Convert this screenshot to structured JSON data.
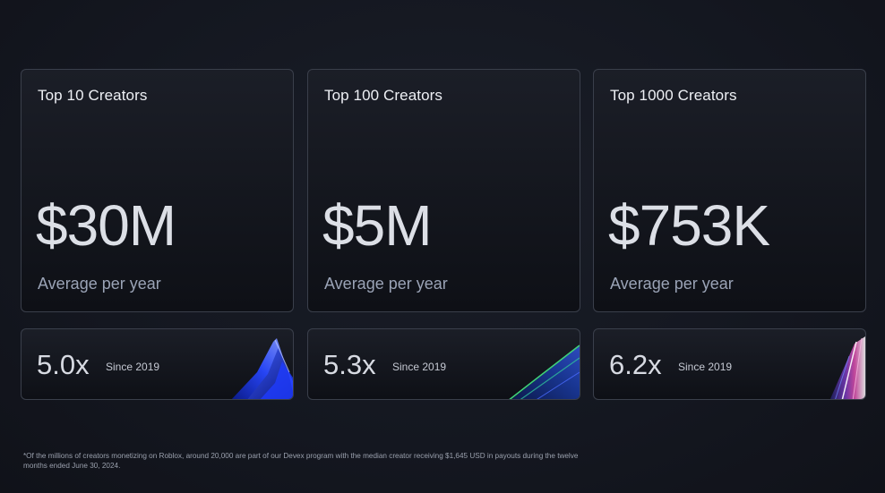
{
  "cards": [
    {
      "title": "Top 10 Creators",
      "value": "$30M",
      "subtitle": "Average per year",
      "multiplier": "5.0x",
      "since": "Since 2019"
    },
    {
      "title": "Top 100 Creators",
      "value": "$5M",
      "subtitle": "Average per year",
      "multiplier": "5.3x",
      "since": "Since 2019"
    },
    {
      "title": "Top 1000 Creators",
      "value": "$753K",
      "subtitle": "Average per year",
      "multiplier": "6.2x",
      "since": "Since 2019"
    }
  ],
  "footnote": "*Of the millions of creators monetizing on Roblox, around 20,000 are part of our Devex program with the median creator receiving $1,645 USD in payouts during the twelve months ended June 30, 2024.",
  "colors": {
    "background": "#151821",
    "card_border": "#3a3f4b",
    "accent_blue": "#2a4dff",
    "accent_green": "#3fd07a",
    "accent_pink": "#e04fb0"
  },
  "icons": [
    "crystal-shard-blue-icon",
    "crystal-shard-green-icon",
    "crystal-shard-prism-icon"
  ]
}
